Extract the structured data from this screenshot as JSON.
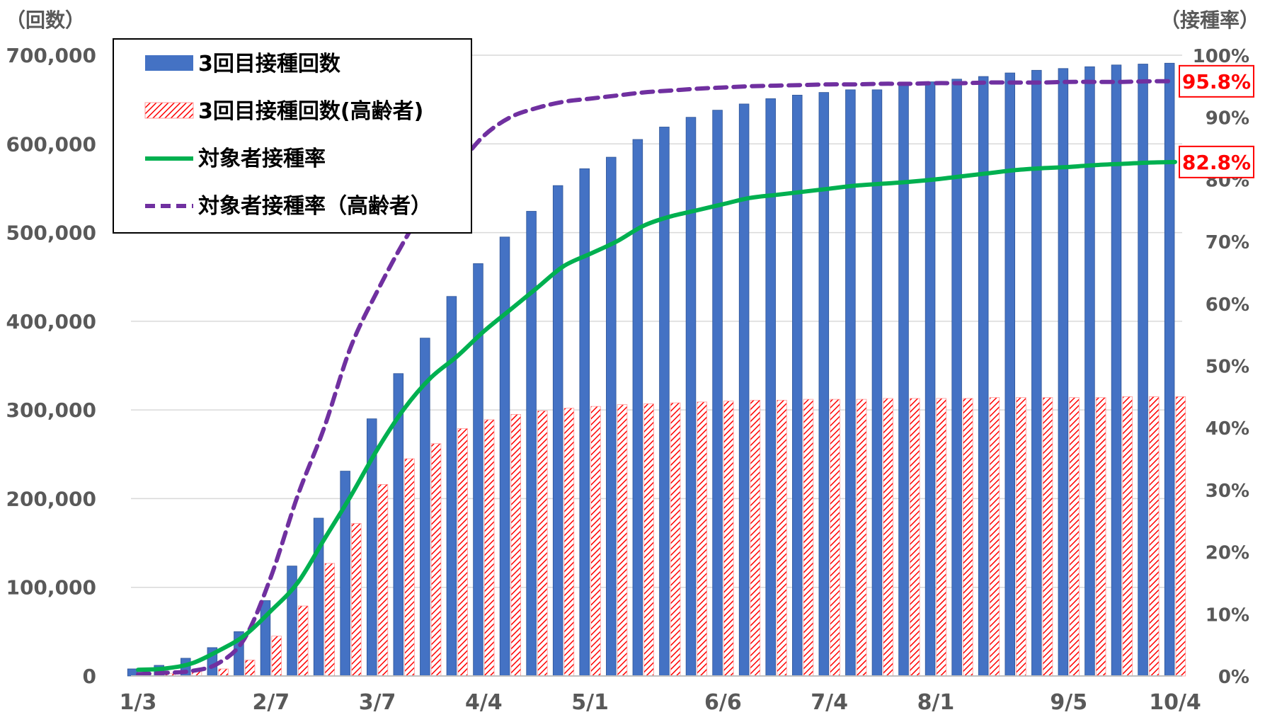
{
  "chart_data": {
    "type": "bar+line",
    "left_axis_title": "（回数）",
    "right_axis_title": "（接種率）",
    "y_left": {
      "min": 0,
      "max": 700000,
      "ticks": [
        "0",
        "100,000",
        "200,000",
        "300,000",
        "400,000",
        "500,000",
        "600,000",
        "700,000"
      ]
    },
    "y_right": {
      "min": 0,
      "max": 100,
      "ticks": [
        "0%",
        "10%",
        "20%",
        "30%",
        "40%",
        "50%",
        "60%",
        "70%",
        "80%",
        "90%",
        "100%"
      ]
    },
    "x_tick_labels": [
      {
        "index": 0,
        "label": "1/3"
      },
      {
        "index": 5,
        "label": "2/7"
      },
      {
        "index": 9,
        "label": "3/7"
      },
      {
        "index": 13,
        "label": "4/4"
      },
      {
        "index": 17,
        "label": "5/1"
      },
      {
        "index": 22,
        "label": "6/6"
      },
      {
        "index": 26,
        "label": "7/4"
      },
      {
        "index": 30,
        "label": "8/1"
      },
      {
        "index": 35,
        "label": "9/5"
      },
      {
        "index": 39,
        "label": "10/4"
      }
    ],
    "n_categories": 40,
    "series": [
      {
        "name": "3回目接種回数",
        "kind": "bar",
        "color": "#4472c4",
        "values": [
          8000,
          12000,
          20000,
          32000,
          50000,
          85000,
          124000,
          178000,
          231000,
          290000,
          341000,
          381000,
          428000,
          465000,
          495000,
          524000,
          553000,
          572000,
          585000,
          605000,
          619000,
          630000,
          638000,
          645000,
          651000,
          655000,
          658000,
          661000,
          661000,
          667000,
          670000,
          673000,
          676000,
          680000,
          683000,
          685000,
          687000,
          689000,
          690000,
          691000
        ]
      },
      {
        "name": "3回目接種回数(高齢者)",
        "kind": "bar",
        "color": "#ff0000",
        "pattern": "hatch",
        "values": [
          2000,
          3000,
          5000,
          8000,
          18000,
          45000,
          79000,
          127000,
          172000,
          216000,
          245000,
          262000,
          279000,
          289000,
          295000,
          299000,
          302000,
          304000,
          306000,
          307000,
          308000,
          309000,
          310000,
          311000,
          311000,
          312000,
          312000,
          312000,
          313000,
          313000,
          313000,
          313000,
          314000,
          314000,
          314000,
          314000,
          314000,
          315000,
          315000,
          315000
        ]
      },
      {
        "name": "対象者接種率",
        "kind": "line",
        "color": "#00b050",
        "values": [
          1.0,
          1.2,
          2.0,
          4.0,
          6.5,
          10.5,
          15.0,
          22.0,
          29.0,
          36.5,
          43.0,
          48.0,
          51.5,
          55.5,
          59.0,
          62.5,
          66.0,
          68.0,
          70.0,
          72.5,
          74.0,
          75.0,
          76.0,
          77.0,
          77.5,
          78.0,
          78.5,
          79.0,
          79.3,
          79.6,
          80.0,
          80.5,
          81.0,
          81.5,
          81.8,
          82.0,
          82.3,
          82.5,
          82.7,
          82.8
        ]
      },
      {
        "name": "対象者接種率（高齢者）",
        "kind": "line",
        "color": "#7030a0",
        "dash": true,
        "values": [
          0.3,
          0.5,
          0.8,
          2.0,
          6.0,
          16.0,
          29.0,
          40.0,
          53.0,
          62.0,
          70.0,
          77.0,
          82.0,
          87.0,
          90.0,
          91.5,
          92.5,
          93.0,
          93.5,
          94.0,
          94.3,
          94.6,
          94.8,
          95.0,
          95.1,
          95.2,
          95.3,
          95.3,
          95.4,
          95.4,
          95.5,
          95.5,
          95.6,
          95.6,
          95.6,
          95.7,
          95.7,
          95.7,
          95.8,
          95.8
        ]
      }
    ],
    "end_labels": [
      {
        "series_index": 3,
        "text": "95.8%"
      },
      {
        "series_index": 2,
        "text": "82.8%"
      }
    ],
    "legend_position": "top-left",
    "grid": {
      "horizontal": true
    }
  }
}
